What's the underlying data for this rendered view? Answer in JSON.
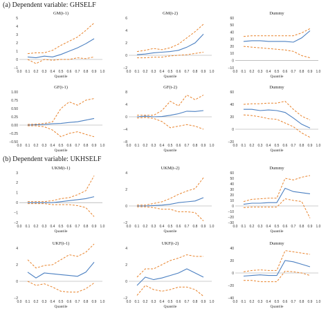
{
  "sections": [
    {
      "title": "(a) Dependent variable: GHSELF"
    },
    {
      "title": "(b) Dependent variable: UKHSELF"
    }
  ],
  "colors": {
    "estimate": "#4a7fc1",
    "ci": "#e8822a",
    "axis": "#999999"
  },
  "chart_data": [
    {
      "type": "line",
      "title": "GM(t-1)",
      "xlabel": "Quantile",
      "ylabel": "",
      "x": [
        0.1,
        0.2,
        0.3,
        0.4,
        0.5,
        0.6,
        0.7,
        0.8,
        0.9
      ],
      "xticks": [
        "0.0",
        "0.1",
        "0.2",
        "0.3",
        "0.4",
        "0.5",
        "0.6",
        "0.7",
        "0.8",
        "0.9",
        "1.0"
      ],
      "ylim": [
        -1,
        5
      ],
      "yticks": [
        "−1",
        "0",
        "1",
        "2",
        "3",
        "4",
        "5"
      ],
      "series": [
        {
          "role": "estimate",
          "values": [
            0.3,
            0.2,
            0.4,
            0.3,
            0.6,
            1.0,
            1.4,
            1.9,
            2.5
          ]
        },
        {
          "role": "upper",
          "values": [
            0.7,
            0.8,
            0.8,
            1.1,
            1.7,
            2.2,
            2.7,
            3.5,
            4.4
          ]
        },
        {
          "role": "lower",
          "values": [
            0.0,
            -0.5,
            0.0,
            -0.1,
            0.0,
            0.0,
            0.2,
            0.1,
            0.3
          ]
        }
      ]
    },
    {
      "type": "line",
      "title": "GM(t-2)",
      "xlabel": "Quantile",
      "ylabel": "",
      "x": [
        0.1,
        0.2,
        0.3,
        0.4,
        0.5,
        0.6,
        0.7,
        0.8,
        0.9
      ],
      "xticks": [
        "0.0",
        "0.1",
        "0.2",
        "0.3",
        "0.4",
        "0.5",
        "0.6",
        "0.7",
        "0.8",
        "0.9",
        "1.0"
      ],
      "ylim": [
        -2,
        6
      ],
      "yticks": [
        "−2",
        "0",
        "2",
        "4",
        "6"
      ],
      "series": [
        {
          "role": "estimate",
          "values": [
            0.1,
            0.2,
            0.4,
            0.5,
            0.6,
            0.8,
            1.3,
            2.0,
            3.4
          ]
        },
        {
          "role": "upper",
          "values": [
            0.6,
            0.8,
            1.1,
            0.9,
            1.2,
            1.8,
            2.8,
            3.8,
            5.0
          ]
        },
        {
          "role": "lower",
          "values": [
            -0.4,
            -0.4,
            -0.3,
            -0.3,
            -0.1,
            0.0,
            0.1,
            0.3,
            0.5
          ]
        }
      ]
    },
    {
      "type": "line",
      "title": "Dummy",
      "xlabel": "Quantile",
      "ylabel": "",
      "x": [
        0.1,
        0.2,
        0.3,
        0.4,
        0.5,
        0.6,
        0.7,
        0.8,
        0.9
      ],
      "xticks": [
        "0.0",
        "0.1",
        "0.2",
        "0.3",
        "0.4",
        "0.5",
        "0.6",
        "0.7",
        "0.8",
        "0.9",
        "1.0"
      ],
      "ylim": [
        -10,
        60
      ],
      "yticks": [
        "−10",
        "0",
        "10",
        "20",
        "30",
        "40",
        "50",
        "60"
      ],
      "series": [
        {
          "role": "estimate",
          "values": [
            27,
            28,
            28,
            27,
            27,
            27,
            26,
            32,
            42
          ]
        },
        {
          "role": "upper",
          "values": [
            34,
            35,
            35,
            35,
            35,
            35,
            35,
            39,
            45
          ]
        },
        {
          "role": "lower",
          "values": [
            20,
            19,
            18,
            17,
            16,
            15,
            13,
            7,
            4
          ]
        }
      ]
    },
    {
      "type": "line",
      "title": "GF(t-1)",
      "xlabel": "Quantile",
      "ylabel": "",
      "x": [
        0.1,
        0.2,
        0.3,
        0.4,
        0.5,
        0.6,
        0.7,
        0.8,
        0.9
      ],
      "xticks": [
        "0.0",
        "0.1",
        "0.2",
        "0.3",
        "0.4",
        "0.5",
        "0.6",
        "0.7",
        "0.8",
        "0.9",
        "1.0"
      ],
      "ylim": [
        -0.5,
        1.0
      ],
      "yticks": [
        "−0.50",
        "−0.25",
        "0.00",
        "0.25",
        "0.50",
        "0.75",
        "1.00"
      ],
      "series": [
        {
          "role": "estimate",
          "values": [
            0.0,
            0.01,
            0.02,
            0.04,
            0.05,
            0.08,
            0.1,
            0.15,
            0.2
          ]
        },
        {
          "role": "upper",
          "values": [
            0.02,
            0.03,
            0.05,
            0.1,
            0.5,
            0.7,
            0.6,
            0.75,
            0.8
          ]
        },
        {
          "role": "lower",
          "values": [
            -0.02,
            -0.02,
            -0.05,
            -0.15,
            -0.35,
            -0.25,
            -0.2,
            -0.28,
            -0.35
          ]
        }
      ]
    },
    {
      "type": "line",
      "title": "GF(t-2)",
      "xlabel": "Quantile",
      "ylabel": "",
      "x": [
        0.1,
        0.2,
        0.3,
        0.4,
        0.5,
        0.6,
        0.7,
        0.8,
        0.9
      ],
      "xticks": [
        "0.0",
        "0.1",
        "0.2",
        "0.3",
        "0.4",
        "0.5",
        "0.6",
        "0.7",
        "0.8",
        "0.9",
        "1.0"
      ],
      "ylim": [
        -8,
        8
      ],
      "yticks": [
        "−8",
        "−4",
        "0",
        "4",
        "8"
      ],
      "series": [
        {
          "role": "estimate",
          "values": [
            0.0,
            0.2,
            0.0,
            0.1,
            0.5,
            1.0,
            1.8,
            1.7,
            2.0
          ]
        },
        {
          "role": "upper",
          "values": [
            0.5,
            0.5,
            0.5,
            2.0,
            5.0,
            3.5,
            7.0,
            5.5,
            7.0
          ]
        },
        {
          "role": "lower",
          "values": [
            -0.4,
            -0.2,
            -0.5,
            -1.5,
            -3.5,
            -3.0,
            -2.5,
            -3.0,
            -4.0
          ]
        }
      ]
    },
    {
      "type": "line",
      "title": "Dummy",
      "xlabel": "Quantile",
      "ylabel": "",
      "x": [
        0.1,
        0.2,
        0.3,
        0.4,
        0.5,
        0.6,
        0.7,
        0.8,
        0.9
      ],
      "xticks": [
        "0.0",
        "0.1",
        "0.2",
        "0.3",
        "0.4",
        "0.5",
        "0.6",
        "0.7",
        "0.8",
        "0.9",
        "1.0"
      ],
      "ylim": [
        -20,
        60
      ],
      "yticks": [
        "−20",
        "0",
        "20",
        "40",
        "60"
      ],
      "series": [
        {
          "role": "estimate",
          "values": [
            32,
            32,
            30,
            31,
            30,
            27,
            18,
            8,
            2
          ]
        },
        {
          "role": "upper",
          "values": [
            40,
            41,
            41,
            42,
            42,
            45,
            32,
            21,
            15
          ]
        },
        {
          "role": "lower",
          "values": [
            23,
            22,
            20,
            17,
            16,
            10,
            4,
            -6,
            -13
          ]
        }
      ]
    },
    {
      "type": "line",
      "title": "UKM(t-1)",
      "xlabel": "Quantile",
      "ylabel": "",
      "x": [
        0.1,
        0.2,
        0.3,
        0.4,
        0.5,
        0.6,
        0.7,
        0.8,
        0.9
      ],
      "xticks": [
        "0.0",
        "0.1",
        "0.2",
        "0.3",
        "0.4",
        "0.5",
        "0.6",
        "0.7",
        "0.8",
        "0.9",
        "1.0"
      ],
      "ylim": [
        -2,
        3
      ],
      "yticks": [
        "−2",
        "−1",
        "0",
        "1",
        "2",
        "3"
      ],
      "series": [
        {
          "role": "estimate",
          "values": [
            0.0,
            0.0,
            0.0,
            0.0,
            0.1,
            0.2,
            0.3,
            0.4,
            0.6
          ]
        },
        {
          "role": "upper",
          "values": [
            0.1,
            0.1,
            0.1,
            0.2,
            0.4,
            0.5,
            0.8,
            1.2,
            2.7
          ]
        },
        {
          "role": "lower",
          "values": [
            -0.1,
            -0.1,
            -0.1,
            -0.2,
            -0.2,
            -0.2,
            -0.3,
            -0.5,
            -1.4
          ]
        }
      ]
    },
    {
      "type": "line",
      "title": "UKM(t-2)",
      "xlabel": "Quantile",
      "ylabel": "",
      "x": [
        0.1,
        0.2,
        0.3,
        0.4,
        0.5,
        0.6,
        0.7,
        0.8,
        0.9
      ],
      "xticks": [
        "0.0",
        "0.1",
        "0.2",
        "0.3",
        "0.4",
        "0.5",
        "0.6",
        "0.7",
        "0.8",
        "0.9",
        "1.0"
      ],
      "ylim": [
        -2,
        4
      ],
      "yticks": [
        "−2",
        "0",
        "2",
        "4"
      ],
      "series": [
        {
          "role": "estimate",
          "values": [
            0.0,
            0.0,
            0.05,
            0.1,
            0.2,
            0.4,
            0.5,
            0.6,
            1.0
          ]
        },
        {
          "role": "upper",
          "values": [
            0.1,
            0.1,
            0.3,
            0.5,
            0.9,
            1.4,
            1.8,
            2.1,
            3.4
          ]
        },
        {
          "role": "lower",
          "values": [
            -0.1,
            -0.1,
            -0.2,
            -0.4,
            -0.4,
            -0.7,
            -0.7,
            -0.8,
            -1.8
          ]
        }
      ]
    },
    {
      "type": "line",
      "title": "Dummy",
      "xlabel": "Quantile",
      "ylabel": "",
      "x": [
        0.1,
        0.2,
        0.3,
        0.4,
        0.5,
        0.6,
        0.7,
        0.8,
        0.9
      ],
      "xticks": [
        "0.0",
        "0.1",
        "0.2",
        "0.3",
        "0.4",
        "0.5",
        "0.6",
        "0.7",
        "0.8",
        "0.9",
        "1.0"
      ],
      "ylim": [
        -30,
        60
      ],
      "yticks": [
        "−30",
        "−20",
        "−10",
        "0",
        "10",
        "20",
        "30",
        "40",
        "50",
        "60"
      ],
      "series": [
        {
          "role": "estimate",
          "values": [
            3,
            5,
            5,
            6,
            6,
            32,
            26,
            24,
            22
          ]
        },
        {
          "role": "upper",
          "values": [
            8,
            12,
            13,
            14,
            14,
            50,
            47,
            52,
            55
          ]
        },
        {
          "role": "lower",
          "values": [
            -3,
            -2,
            -2,
            -2,
            -2,
            13,
            10,
            8,
            -22
          ]
        }
      ]
    },
    {
      "type": "line",
      "title": "UKF(t-1)",
      "xlabel": "Quantile",
      "ylabel": "",
      "x": [
        0.1,
        0.2,
        0.3,
        0.4,
        0.5,
        0.6,
        0.7,
        0.8,
        0.9
      ],
      "xticks": [
        "0.0",
        "0.1",
        "0.2",
        "0.3",
        "0.4",
        "0.5",
        "0.6",
        "0.7",
        "0.8",
        "0.9",
        "1.0"
      ],
      "ylim": [
        -2,
        4
      ],
      "yticks": [
        "−2",
        "0",
        "2",
        "4"
      ],
      "series": [
        {
          "role": "estimate",
          "values": [
            1.1,
            0.4,
            1.0,
            0.9,
            0.8,
            0.7,
            0.6,
            1.1,
            2.3
          ]
        },
        {
          "role": "upper",
          "values": [
            2.6,
            1.6,
            1.9,
            2.0,
            2.6,
            3.2,
            3.0,
            3.5,
            4.5
          ]
        },
        {
          "role": "lower",
          "values": [
            0.0,
            -0.5,
            -0.3,
            -0.7,
            -1.2,
            -1.3,
            -1.3,
            -0.9,
            -0.2
          ]
        }
      ]
    },
    {
      "type": "line",
      "title": "UKF(t-2)",
      "xlabel": "Quantile",
      "ylabel": "",
      "x": [
        0.1,
        0.2,
        0.3,
        0.4,
        0.5,
        0.6,
        0.7,
        0.8,
        0.9
      ],
      "xticks": [
        "0.0",
        "0.1",
        "0.2",
        "0.3",
        "0.4",
        "0.5",
        "0.6",
        "0.7",
        "0.8",
        "0.9",
        "1.0"
      ],
      "ylim": [
        -2,
        4
      ],
      "yticks": [
        "−2",
        "0",
        "2",
        "4"
      ],
      "series": [
        {
          "role": "estimate",
          "values": [
            -0.5,
            0.5,
            0.2,
            0.4,
            0.7,
            1.0,
            1.5,
            1.0,
            0.5
          ]
        },
        {
          "role": "upper",
          "values": [
            0.5,
            1.5,
            1.5,
            2.0,
            2.5,
            2.8,
            3.2,
            3.0,
            3.0
          ]
        },
        {
          "role": "lower",
          "values": [
            -1.7,
            -0.5,
            -1.0,
            -1.2,
            -1.0,
            -0.7,
            -0.7,
            -1.0,
            -1.8
          ]
        }
      ]
    },
    {
      "type": "line",
      "title": "Dummy",
      "xlabel": "Quantile",
      "ylabel": "",
      "x": [
        0.1,
        0.2,
        0.3,
        0.4,
        0.5,
        0.6,
        0.7,
        0.8,
        0.9
      ],
      "xticks": [
        "0.0",
        "0.1",
        "0.2",
        "0.3",
        "0.4",
        "0.5",
        "0.6",
        "0.7",
        "0.8",
        "0.9",
        "1.0"
      ],
      "ylim": [
        -40,
        40
      ],
      "yticks": [
        "−40",
        "−20",
        "0",
        "20",
        "40"
      ],
      "series": [
        {
          "role": "estimate",
          "values": [
            -5,
            -4,
            -3,
            -4,
            -4,
            20,
            18,
            14,
            10
          ]
        },
        {
          "role": "upper",
          "values": [
            2,
            4,
            5,
            4,
            4,
            36,
            34,
            32,
            30
          ]
        },
        {
          "role": "lower",
          "values": [
            -12,
            -12,
            -14,
            -14,
            -14,
            3,
            2,
            0,
            -4
          ]
        }
      ]
    }
  ]
}
